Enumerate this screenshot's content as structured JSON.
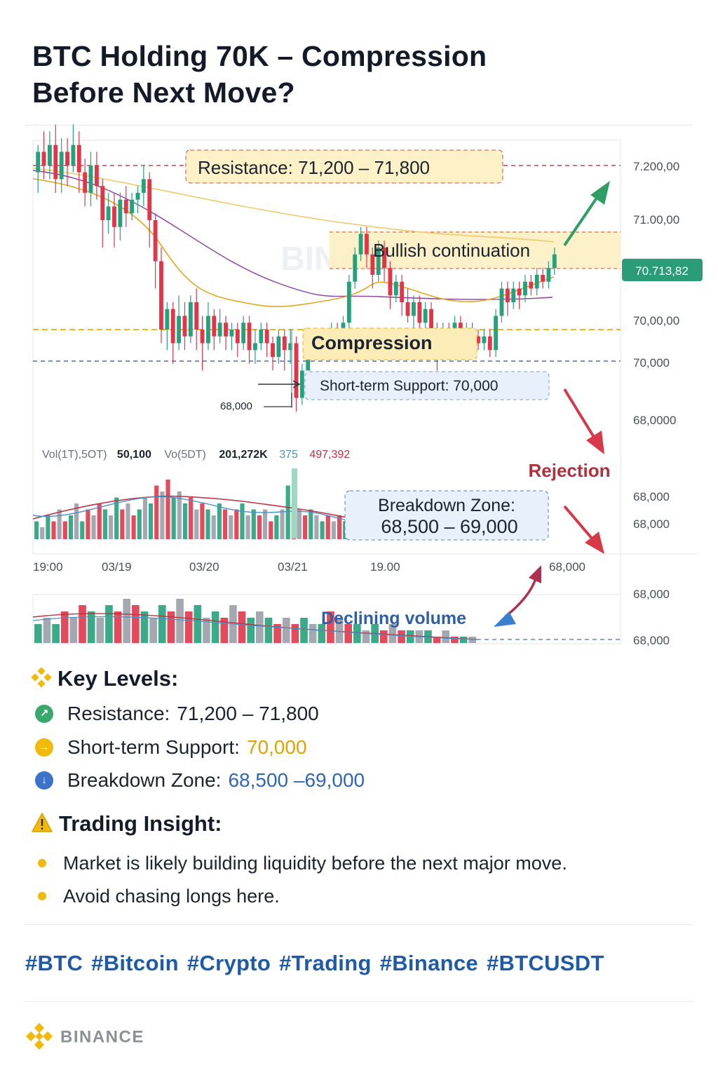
{
  "title_line1": "BTC Holding 70K – Compression",
  "title_line2": "Before Next Move?",
  "chart_data": {
    "type": "candlestick",
    "price_axis_labels": [
      "7.200,00",
      "71.00,00",
      "70,00,00",
      "70,000",
      "68,0000",
      "68,000",
      "68,000",
      "68,000",
      "68,000"
    ],
    "current_price_label": "70.713,82",
    "time_axis_labels": [
      "19:00",
      "03/19",
      "03/20",
      "03/21",
      "19.00",
      "68,000"
    ],
    "small_price_label": "68,000",
    "resistance_label": "Resistance: 71,200 – 71,800",
    "bullish_label": "Bullish continuation",
    "compression_label": "Compression",
    "support_label": "Short-term Support: 70,000",
    "rejection_label": "Rejection",
    "breakdown_label_line1": "Breakdown Zone:",
    "breakdown_label_line2": "68,500 – 69,000",
    "declining_volume_label": "Declining volume",
    "volume_legend": {
      "vol_label": "Vol(1T),5OT)",
      "vol_value": "50,100",
      "vo5_label": "Vo(5DT)",
      "vo5_value": "201,272K",
      "v3": "375",
      "v4": "497,392"
    },
    "candles": [
      [
        71.15,
        71.3,
        71.0,
        71.35
      ],
      [
        71.3,
        71.2,
        71.1,
        71.45
      ],
      [
        71.2,
        71.35,
        71.1,
        71.45
      ],
      [
        71.35,
        71.1,
        71.0,
        71.5
      ],
      [
        71.1,
        71.3,
        71.0,
        71.4
      ],
      [
        71.3,
        71.2,
        71.05,
        71.4
      ],
      [
        71.2,
        71.35,
        71.15,
        71.5
      ],
      [
        71.35,
        71.15,
        71.0,
        71.45
      ],
      [
        71.15,
        71.0,
        70.9,
        71.25
      ],
      [
        71.0,
        71.2,
        70.9,
        71.3
      ],
      [
        71.2,
        71.05,
        70.95,
        71.3
      ],
      [
        71.05,
        70.8,
        70.6,
        71.1
      ],
      [
        70.8,
        70.9,
        70.7,
        71.0
      ],
      [
        70.9,
        70.75,
        70.6,
        71.0
      ],
      [
        70.75,
        70.95,
        70.65,
        71.0
      ],
      [
        70.95,
        70.85,
        70.75,
        71.05
      ],
      [
        70.85,
        70.95,
        70.8,
        71.0
      ],
      [
        70.95,
        71.0,
        70.85,
        71.05
      ],
      [
        71.0,
        71.1,
        70.9,
        71.2
      ],
      [
        71.1,
        70.8,
        70.6,
        71.15
      ],
      [
        70.8,
        70.5,
        70.3,
        70.85
      ],
      [
        70.5,
        70.0,
        69.9,
        70.6
      ],
      [
        70.0,
        70.15,
        69.85,
        70.2
      ],
      [
        70.15,
        69.9,
        69.75,
        70.2
      ],
      [
        69.9,
        70.1,
        69.85,
        70.25
      ],
      [
        70.1,
        69.95,
        69.85,
        70.2
      ],
      [
        69.95,
        70.2,
        69.9,
        70.25
      ],
      [
        70.2,
        70.0,
        69.85,
        70.3
      ],
      [
        70.0,
        69.9,
        69.7,
        70.1
      ],
      [
        69.9,
        70.1,
        69.85,
        70.2
      ],
      [
        70.1,
        69.95,
        69.85,
        70.15
      ],
      [
        69.95,
        70.05,
        69.9,
        70.15
      ],
      [
        70.05,
        69.95,
        69.85,
        70.1
      ],
      [
        69.95,
        70.0,
        69.85,
        70.05
      ],
      [
        70.0,
        69.9,
        69.8,
        70.05
      ],
      [
        69.9,
        70.05,
        69.85,
        70.1
      ],
      [
        70.05,
        69.85,
        69.75,
        70.1
      ],
      [
        69.85,
        69.9,
        69.75,
        70.0
      ],
      [
        69.9,
        70.0,
        69.85,
        70.05
      ],
      [
        70.0,
        69.9,
        69.8,
        70.05
      ],
      [
        69.9,
        69.8,
        69.7,
        69.95
      ],
      [
        69.8,
        69.95,
        69.75,
        70.0
      ],
      [
        69.95,
        69.85,
        69.7,
        70.0
      ],
      [
        69.85,
        69.9,
        69.75,
        70.0
      ],
      [
        69.9,
        69.5,
        69.4,
        69.95
      ],
      [
        69.5,
        69.7,
        69.45,
        69.75
      ],
      [
        69.7,
        69.85,
        69.7,
        69.9
      ],
      [
        69.85,
        69.95,
        69.8,
        70.0
      ],
      [
        69.95,
        69.85,
        69.8,
        70.0
      ],
      [
        69.85,
        69.95,
        69.8,
        70.0
      ],
      [
        69.95,
        70.0,
        69.85,
        70.05
      ],
      [
        70.0,
        69.9,
        69.85,
        70.05
      ],
      [
        69.9,
        70.05,
        69.85,
        70.1
      ],
      [
        70.05,
        70.35,
        70.0,
        70.4
      ],
      [
        70.35,
        70.55,
        70.3,
        70.6
      ],
      [
        70.55,
        70.7,
        70.5,
        70.75
      ],
      [
        70.7,
        70.55,
        70.45,
        70.75
      ],
      [
        70.55,
        70.4,
        70.3,
        70.6
      ],
      [
        70.4,
        70.6,
        70.35,
        70.65
      ],
      [
        70.6,
        70.45,
        70.35,
        70.65
      ],
      [
        70.45,
        70.25,
        70.15,
        70.5
      ],
      [
        70.25,
        70.35,
        70.2,
        70.4
      ],
      [
        70.35,
        70.2,
        70.1,
        70.4
      ],
      [
        70.2,
        70.1,
        70.05,
        70.3
      ],
      [
        70.1,
        70.2,
        70.0,
        70.25
      ],
      [
        70.2,
        70.05,
        69.95,
        70.25
      ],
      [
        70.05,
        70.15,
        70.0,
        70.2
      ],
      [
        70.15,
        70.0,
        69.9,
        70.2
      ],
      [
        70.0,
        69.85,
        69.7,
        70.05
      ],
      [
        69.85,
        70.0,
        69.8,
        70.05
      ],
      [
        70.0,
        69.9,
        69.85,
        70.05
      ],
      [
        69.9,
        70.05,
        69.85,
        70.1
      ],
      [
        70.05,
        69.95,
        69.85,
        70.1
      ],
      [
        69.95,
        70.0,
        69.9,
        70.05
      ],
      [
        70.0,
        69.95,
        69.85,
        70.05
      ],
      [
        69.95,
        69.9,
        69.85,
        70.0
      ],
      [
        69.9,
        69.95,
        69.85,
        70.0
      ],
      [
        69.95,
        69.85,
        69.8,
        70.0
      ],
      [
        69.85,
        70.1,
        69.8,
        70.15
      ],
      [
        70.1,
        70.3,
        70.05,
        70.35
      ],
      [
        70.3,
        70.2,
        70.1,
        70.35
      ],
      [
        70.2,
        70.3,
        70.15,
        70.35
      ],
      [
        70.3,
        70.25,
        70.15,
        70.35
      ],
      [
        70.25,
        70.35,
        70.2,
        70.4
      ],
      [
        70.35,
        70.3,
        70.25,
        70.4
      ],
      [
        70.3,
        70.4,
        70.25,
        70.45
      ],
      [
        70.4,
        70.35,
        70.3,
        70.45
      ],
      [
        70.35,
        70.45,
        70.3,
        70.5
      ],
      [
        70.45,
        70.55,
        70.4,
        70.6
      ]
    ],
    "volumes": [
      3,
      2,
      4,
      3,
      5,
      3,
      4,
      6,
      3,
      5,
      4,
      6,
      5,
      4,
      7,
      5,
      6,
      4,
      5,
      7,
      6,
      9,
      8,
      10,
      7,
      8,
      6,
      7,
      5,
      6,
      5,
      4,
      6,
      5,
      4,
      5,
      6,
      4,
      5,
      4,
      5,
      3,
      4,
      5,
      9,
      6,
      5,
      4,
      5,
      4,
      3,
      4,
      3,
      4,
      3,
      3,
      2,
      3,
      2,
      3,
      2,
      2,
      3,
      2,
      2,
      2,
      1,
      2,
      2,
      1,
      2,
      1,
      1,
      2,
      1,
      1,
      2,
      1,
      1,
      1
    ],
    "volumes2": [
      3,
      4,
      3,
      5,
      4,
      6,
      5,
      4,
      6,
      5,
      7,
      6,
      5,
      4,
      6,
      5,
      7,
      5,
      6,
      4,
      5,
      4,
      6,
      5,
      4,
      5,
      4,
      3,
      4,
      3,
      4,
      3,
      3,
      5,
      4,
      3,
      3,
      2,
      3,
      2,
      3,
      2,
      2,
      2,
      2,
      1,
      2,
      1,
      1,
      1
    ]
  },
  "key_levels": {
    "heading": "Key Levels:",
    "items": [
      {
        "label": "Resistance:",
        "value": "71,200 – 71,800",
        "color": "#1c2330",
        "dot": "#3aa76d"
      },
      {
        "label": "Short-term Support:",
        "value": "70,000",
        "color": "#e0a400",
        "dot": "#f0b90b"
      },
      {
        "label": "Breakdown Zone:",
        "value": "68,500 –69,000",
        "color": "#2f66b3",
        "dot": "#3a73c9"
      }
    ]
  },
  "trading_insight": {
    "heading": "Trading Insight:",
    "bullets": [
      "Market is likely building liquidity before the next major move.",
      "Avoid chasing longs here."
    ]
  },
  "hashtags": [
    "#BTC",
    "#Bitcoin",
    "#Crypto",
    "#Trading",
    "#Binance",
    "#BTCUSDT"
  ],
  "brand": "BINANCE",
  "colors": {
    "up": "#26a17b",
    "down": "#e0364a",
    "accent": "#f0b90b",
    "blue": "#2f66b3"
  }
}
